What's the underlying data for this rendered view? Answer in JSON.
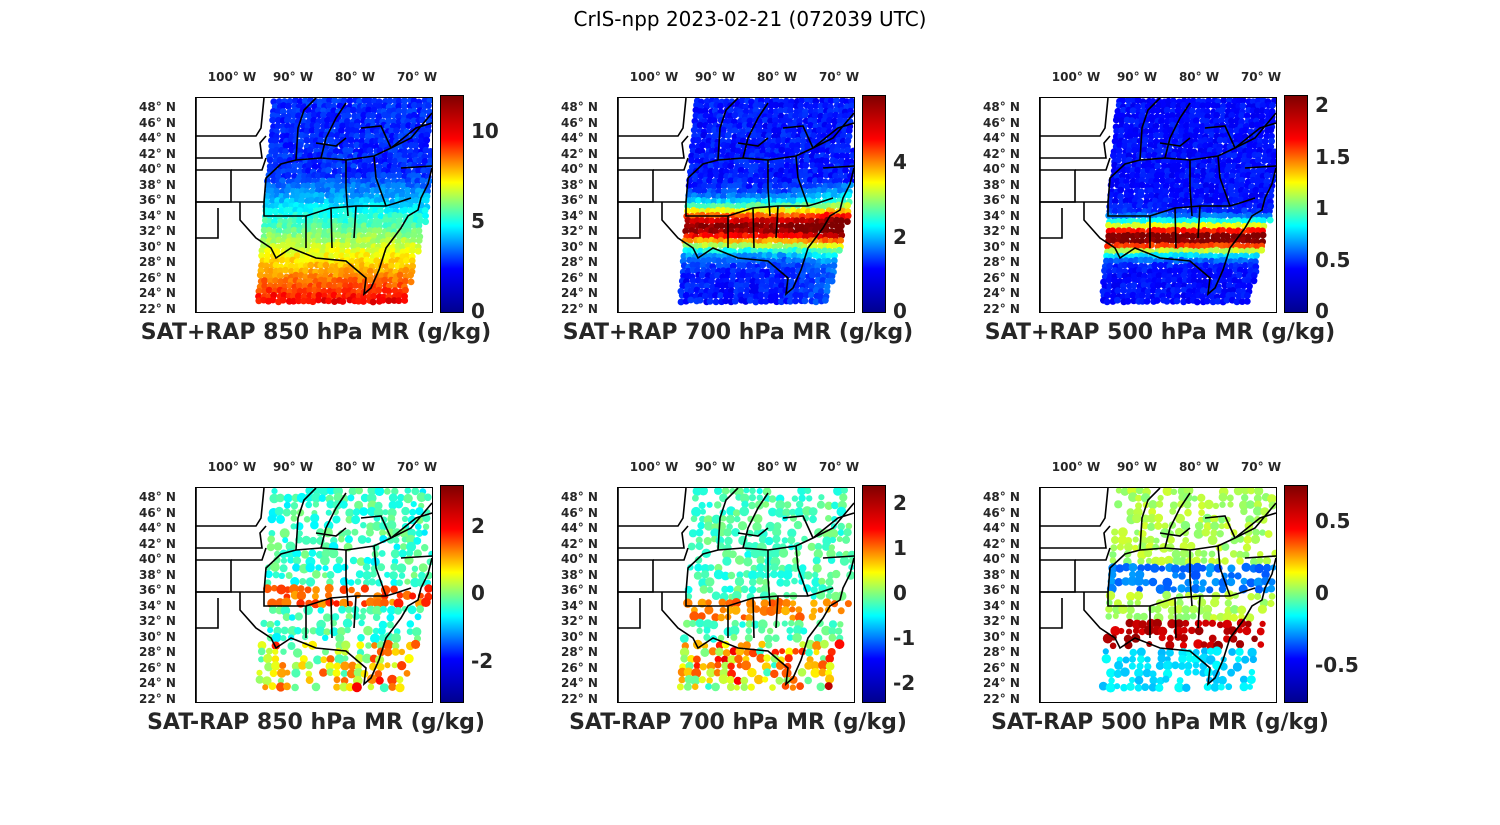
{
  "title": "CrIS-npp 2023-02-21 (072039 UTC)",
  "lon_labels": [
    "100° W",
    "90° W",
    "80° W",
    "70° W"
  ],
  "lat_labels": [
    "48° N",
    "46° N",
    "44° N",
    "42° N",
    "40° N",
    "38° N",
    "36° N",
    "34° N",
    "32° N",
    "30° N",
    "28° N",
    "26° N",
    "24° N",
    "22° N"
  ],
  "panels": [
    {
      "title": "SAT+RAP 850 hPa MR (g/kg)",
      "colorbar_ticks": [
        "10",
        "5",
        "0"
      ],
      "colorbar_range": [
        0,
        12
      ]
    },
    {
      "title": "SAT+RAP 700 hPa MR (g/kg)",
      "colorbar_ticks": [
        "4",
        "2",
        "0"
      ],
      "colorbar_range": [
        0,
        5.8
      ]
    },
    {
      "title": "SAT+RAP 500 hPa MR (g/kg)",
      "colorbar_ticks": [
        "2",
        "1.5",
        "1",
        "0.5",
        "0"
      ],
      "colorbar_range": [
        0,
        2.1
      ]
    },
    {
      "title": "SAT-RAP 850 hPa MR (g/kg)",
      "colorbar_ticks": [
        "2",
        "0",
        "-2"
      ],
      "colorbar_range": [
        -3.2,
        3.2
      ]
    },
    {
      "title": "SAT-RAP 700 hPa MR (g/kg)",
      "colorbar_ticks": [
        "2",
        "1",
        "0",
        "-1",
        "-2"
      ],
      "colorbar_range": [
        -2.4,
        2.4
      ]
    },
    {
      "title": "SAT-RAP 500 hPa MR (g/kg)",
      "colorbar_ticks": [
        "0.5",
        "0",
        "-0.5"
      ],
      "colorbar_range": [
        -0.75,
        0.75
      ]
    }
  ],
  "colors": {
    "colormap_low": "#00008f",
    "colormap_high": "#800000"
  }
}
